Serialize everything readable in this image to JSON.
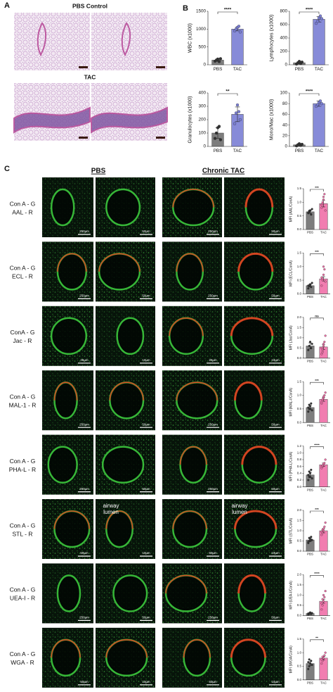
{
  "figure": {
    "panel_labels": [
      "A",
      "B",
      "C"
    ],
    "panel_a": {
      "top_title": "PBS Control",
      "bottom_title": "TAC"
    },
    "panel_c": {
      "col_headers": [
        "PBS",
        "Chronic TAC"
      ],
      "rows": [
        {
          "label": [
            "Con A - G",
            "AAL - R"
          ],
          "scales": [
            "250µm",
            "50µm",
            "250µm",
            "50µm"
          ]
        },
        {
          "label": [
            "Con A - G",
            "ECL - R"
          ],
          "scales": [
            "250µm",
            "50µm",
            "250µm",
            "50µm"
          ]
        },
        {
          "label": [
            "ConA - G",
            "Jac - R"
          ],
          "scales": [
            "25µm",
            "10µm",
            "25µm",
            "10µm"
          ]
        },
        {
          "label": [
            "Con A - G",
            "MAL-1 - R"
          ],
          "scales": [
            "250µm",
            "50µm",
            "250µm",
            "50µm"
          ]
        },
        {
          "label": [
            "Con A - G",
            "PHA-L - R"
          ],
          "scales": [
            "250µm",
            "50µm",
            "250µm",
            "50µm"
          ]
        },
        {
          "label": [
            "Con A - G",
            "STL - R"
          ],
          "scales": [
            "50µm",
            "10µm",
            "50µm",
            "10µm"
          ],
          "annotation": [
            "airway",
            "lumen"
          ]
        },
        {
          "label": [
            "Con A - G",
            "UEA-I - R"
          ],
          "scales": [
            "250µm",
            "50µm",
            "250µm",
            "50µm"
          ]
        },
        {
          "label": [
            "Con A - G",
            "WGA - R"
          ],
          "scales": [
            "50µm",
            "10µm",
            "50µm",
            "10µm"
          ]
        }
      ]
    }
  },
  "chart_data": [
    {
      "type": "bar",
      "ylabel": "WBC (x1000)",
      "categories": [
        "PBS",
        "TAC"
      ],
      "values": [
        130,
        1000
      ],
      "errors": [
        35,
        50
      ],
      "points": [
        [
          100,
          130,
          160,
          90,
          170
        ],
        [
          950,
          1000,
          1050,
          1080,
          920
        ]
      ],
      "colors": [
        "#6f6f6f",
        "#7b7fd4"
      ],
      "ylim": [
        0,
        1500
      ],
      "yticks": [
        0,
        500,
        1000,
        1500
      ],
      "annotation": "****"
    },
    {
      "type": "bar",
      "ylabel": "Lymphocytes (x1000)",
      "categories": [
        "PBS",
        "TAC"
      ],
      "values": [
        30,
        680
      ],
      "errors": [
        15,
        40
      ],
      "points": [
        [
          10,
          30,
          50,
          20,
          40
        ],
        [
          620,
          650,
          700,
          730,
          690
        ]
      ],
      "colors": [
        "#6f6f6f",
        "#7b7fd4"
      ],
      "ylim": [
        0,
        800
      ],
      "yticks": [
        0,
        200,
        400,
        600,
        800
      ],
      "annotation": "****"
    },
    {
      "type": "bar",
      "ylabel": "Granulocytes (x1000)",
      "categories": [
        "PBS",
        "TAC"
      ],
      "values": [
        100,
        240
      ],
      "errors": [
        40,
        55
      ],
      "points": [
        [
          60,
          100,
          140,
          150,
          50
        ],
        [
          170,
          250,
          310,
          260,
          200
        ]
      ],
      "colors": [
        "#6f6f6f",
        "#7b7fd4"
      ],
      "ylim": [
        0,
        400
      ],
      "yticks": [
        0,
        100,
        200,
        300,
        400
      ],
      "annotation": "**"
    },
    {
      "type": "bar",
      "ylabel": "Mono/Mac (x1000)",
      "categories": [
        "PBS",
        "TAC"
      ],
      "values": [
        3,
        80
      ],
      "errors": [
        2,
        5
      ],
      "points": [
        [
          1,
          3,
          5,
          2,
          4
        ],
        [
          75,
          78,
          82,
          85,
          80
        ]
      ],
      "colors": [
        "#6f6f6f",
        "#7b7fd4"
      ],
      "ylim": [
        0,
        100
      ],
      "yticks": [
        0,
        20,
        40,
        60,
        80,
        100
      ],
      "annotation": "****"
    },
    {
      "type": "bar",
      "ylabel": "MFI (AAL/ConA)",
      "categories": [
        "PBS",
        "TAC"
      ],
      "values": [
        0.65,
        0.95
      ],
      "errors": [
        0.06,
        0.12
      ],
      "points": [
        [
          0.6,
          0.65,
          0.7,
          0.55,
          0.75,
          0.62,
          0.68,
          0.7
        ],
        [
          0.8,
          0.95,
          1.1,
          1.3,
          0.7,
          0.9,
          1.0,
          1.2
        ]
      ],
      "colors": [
        "#6f6f6f",
        "#f06fa8"
      ],
      "ylim": [
        0,
        1.5
      ],
      "yticks": [
        {
          "value": 0,
          "label": "0.0"
        },
        0.5,
        {
          "value": 1,
          "label": "1.0"
        },
        1.5
      ],
      "annotation": "***"
    },
    {
      "type": "bar",
      "ylabel": "MFI (ECL/ConA)",
      "categories": [
        "PBS",
        "TAC"
      ],
      "values": [
        0.3,
        0.55
      ],
      "errors": [
        0.05,
        0.08
      ],
      "points": [
        [
          0.2,
          0.3,
          0.35,
          0.25,
          0.4,
          0.3,
          0.28,
          0.33
        ],
        [
          0.3,
          0.5,
          0.7,
          0.9,
          0.45,
          0.6,
          0.55,
          1.0
        ]
      ],
      "colors": [
        "#6f6f6f",
        "#f06fa8"
      ],
      "ylim": [
        0,
        1.5
      ],
      "yticks": [
        {
          "value": 0,
          "label": "0.0"
        },
        0.5,
        {
          "value": 1,
          "label": "1.0"
        },
        1.5
      ],
      "annotation": "***"
    },
    {
      "type": "bar",
      "ylabel": "MFI (Jac/ConA)",
      "categories": [
        "PBS",
        "TAC"
      ],
      "values": [
        0.6,
        0.55
      ],
      "errors": [
        0.15,
        0.12
      ],
      "points": [
        [
          0.4,
          0.6,
          0.8,
          0.5,
          0.7
        ],
        [
          0.2,
          0.4,
          0.6,
          0.8,
          1.1,
          0.5,
          0.3,
          0.7
        ]
      ],
      "colors": [
        "#6f6f6f",
        "#f06fa8"
      ],
      "ylim": [
        0,
        2
      ],
      "yticks": [
        {
          "value": 0,
          "label": "0.0"
        },
        0.5,
        {
          "value": 1,
          "label": "1.0"
        },
        1.5,
        {
          "value": 2,
          "label": "2.0"
        }
      ],
      "annotation": "ns"
    },
    {
      "type": "bar",
      "ylabel": "MFI (MAL-I/ConA)",
      "categories": [
        "PBS",
        "TAC"
      ],
      "values": [
        0.55,
        0.85
      ],
      "errors": [
        0.08,
        0.07
      ],
      "points": [
        [
          0.4,
          0.5,
          0.6,
          0.7,
          0.45,
          0.55,
          0.65,
          0.5
        ],
        [
          0.7,
          0.8,
          0.9,
          1.0,
          1.1,
          0.75,
          0.85,
          0.95
        ]
      ],
      "colors": [
        "#6f6f6f",
        "#f06fa8"
      ],
      "ylim": [
        0,
        1.5
      ],
      "yticks": [
        {
          "value": 0,
          "label": "0.0"
        },
        0.5,
        {
          "value": 1,
          "label": "1.0"
        },
        1.5
      ],
      "annotation": "***"
    },
    {
      "type": "bar",
      "ylabel": "MFI (PHA-L/ConA)",
      "categories": [
        "PBS",
        "TAC"
      ],
      "values": [
        0.35,
        0.65
      ],
      "errors": [
        0.08,
        0.05
      ],
      "points": [
        [
          0.2,
          0.3,
          0.4,
          0.5,
          0.25,
          0.35,
          0.45,
          0.3
        ],
        [
          0.55,
          0.6,
          0.65,
          0.7,
          0.8,
          0.6,
          0.62,
          0.68
        ]
      ],
      "colors": [
        "#6f6f6f",
        "#f06fa8"
      ],
      "ylim": [
        0,
        1.2
      ],
      "yticks": [
        {
          "value": 0,
          "label": "0.0"
        },
        0.2,
        0.4,
        0.6,
        0.8,
        {
          "value": 1,
          "label": "1.0"
        },
        1.2
      ],
      "annotation": "****"
    },
    {
      "type": "bar",
      "ylabel": "MFI (STL/ConA)",
      "categories": [
        "PBS",
        "TAC"
      ],
      "values": [
        0.55,
        1.0
      ],
      "errors": [
        0.06,
        0.1
      ],
      "points": [
        [
          0.4,
          0.5,
          0.6,
          0.7,
          0.55,
          0.45,
          0.65,
          0.5
        ],
        [
          0.8,
          0.9,
          1.0,
          1.2,
          1.4,
          0.95,
          1.05,
          1.1
        ]
      ],
      "colors": [
        "#6f6f6f",
        "#f06fa8"
      ],
      "ylim": [
        0,
        2
      ],
      "yticks": [
        {
          "value": 0,
          "label": "0.0"
        },
        0.5,
        {
          "value": 1,
          "label": "1.0"
        },
        1.5,
        {
          "value": 2,
          "label": "2.0"
        }
      ],
      "annotation": "***"
    },
    {
      "type": "bar",
      "ylabel": "MFI (UEA-I/ConA)",
      "categories": [
        "PBS",
        "TAC"
      ],
      "values": [
        0.1,
        0.7
      ],
      "errors": [
        0.02,
        0.1
      ],
      "points": [
        [
          0.05,
          0.1,
          0.15,
          0.08,
          0.12,
          0.1,
          0.09,
          0.11
        ],
        [
          0.3,
          0.5,
          0.7,
          0.9,
          1.2,
          0.6,
          0.8,
          1.0
        ]
      ],
      "colors": [
        "#6f6f6f",
        "#f06fa8"
      ],
      "ylim": [
        0,
        2
      ],
      "yticks": [
        {
          "value": 0,
          "label": "0.0"
        },
        0.5,
        {
          "value": 1,
          "label": "1.0"
        },
        1.5,
        {
          "value": 2,
          "label": "2.0"
        }
      ],
      "annotation": "****"
    },
    {
      "type": "bar",
      "ylabel": "MFI (WGA/ConA)",
      "categories": [
        "PBS",
        "TAC"
      ],
      "values": [
        0.6,
        0.8
      ],
      "errors": [
        0.07,
        0.06
      ],
      "points": [
        [
          0.4,
          0.5,
          0.6,
          0.7,
          0.55,
          0.65,
          0.75,
          0.6
        ],
        [
          0.6,
          0.7,
          0.8,
          0.9,
          1.0,
          0.75,
          0.85,
          0.8
        ]
      ],
      "colors": [
        "#6f6f6f",
        "#f06fa8"
      ],
      "ylim": [
        0,
        1.5
      ],
      "yticks": [
        {
          "value": 0,
          "label": "0.0"
        },
        0.5,
        {
          "value": 1,
          "label": "1.0"
        },
        1.5
      ],
      "annotation": "**"
    }
  ]
}
